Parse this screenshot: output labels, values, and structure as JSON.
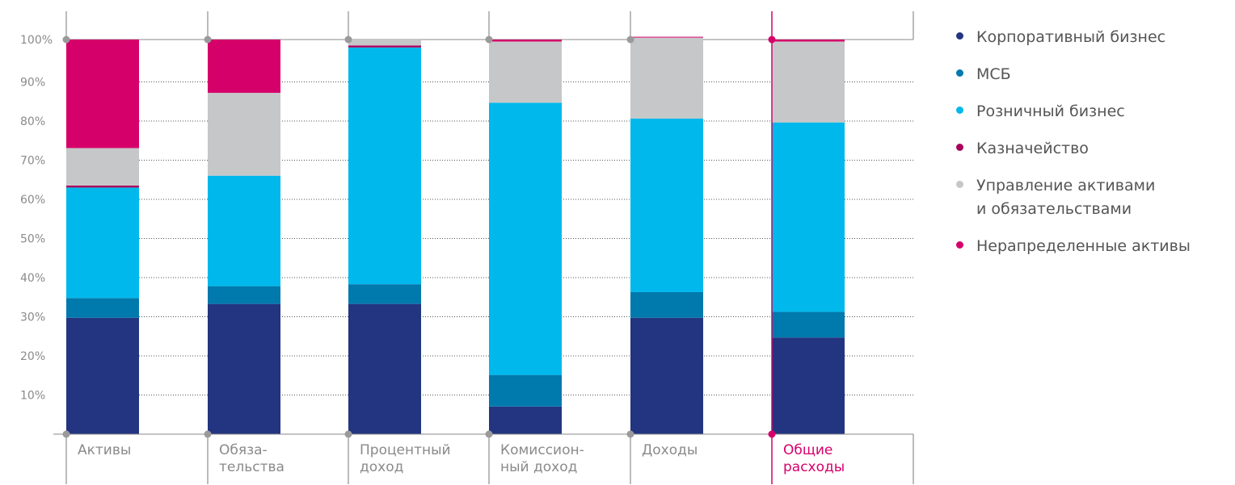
{
  "chart_data": {
    "type": "bar",
    "stacked": true,
    "normalized": true,
    "categories": [
      [
        "Активы"
      ],
      [
        "Обяза-",
        "тельства"
      ],
      [
        "Процентный",
        "доход"
      ],
      [
        "Комиссион-",
        "ный доход"
      ],
      [
        "Доходы"
      ],
      [
        "Общие",
        "расходы"
      ]
    ],
    "highlighted_category_index": 5,
    "y_ticks": [
      "10%",
      "20%",
      "30%",
      "40%",
      "50%",
      "60%",
      "70%",
      "80%",
      "90%",
      "100%"
    ],
    "ylim": [
      0,
      100
    ],
    "grid": "dotted horizontal",
    "legend_position": "right",
    "series": [
      {
        "name": "Корпоративный бизнес",
        "color": "#233580",
        "values": [
          29.5,
          33,
          33,
          7,
          29.5,
          24.5
        ]
      },
      {
        "name": "МСБ",
        "color": "#0079ad",
        "values": [
          5,
          4.5,
          5,
          8,
          6.5,
          6.5
        ]
      },
      {
        "name": "Розничный бизнес",
        "color": "#00b8eb",
        "values": [
          28,
          28,
          60,
          69,
          44,
          48
        ]
      },
      {
        "name": "Казначейство",
        "color": "#a8005a",
        "values": [
          0.5,
          0,
          0.5,
          0,
          0,
          0
        ]
      },
      {
        "name": "Управление активами\nи обязательствами",
        "color": "#c6c7c8",
        "values": [
          9.5,
          21,
          1.5,
          15.5,
          20.5,
          20.5
        ]
      },
      {
        "name": "Нерапределенные активы",
        "color": "#d6006a",
        "values": [
          27.5,
          13.5,
          0,
          0.5,
          0.2,
          0.5
        ]
      }
    ]
  }
}
